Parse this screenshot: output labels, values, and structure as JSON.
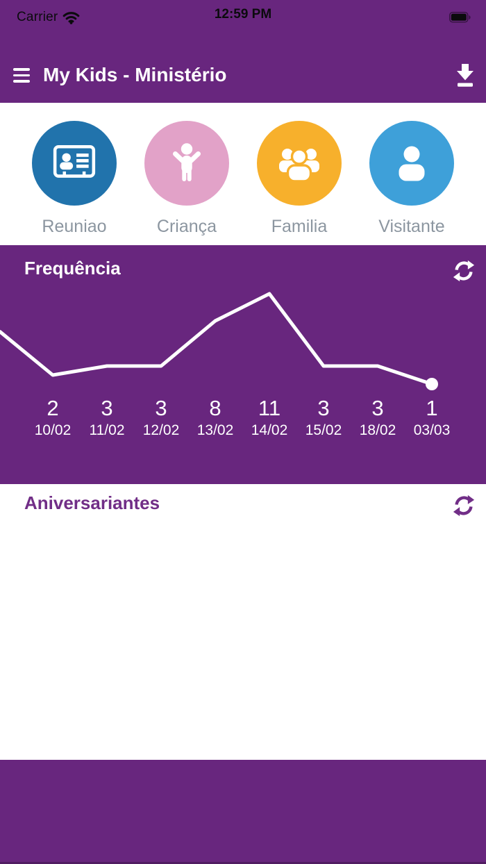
{
  "status_bar": {
    "carrier": "Carrier",
    "time": "12:59 PM",
    "wifi_icon": "wifi-icon",
    "battery_icon": "battery-icon"
  },
  "header": {
    "title": "My Kids - Ministério",
    "menu_icon": "hamburger-menu-icon",
    "download_icon": "download-icon"
  },
  "shortcuts": {
    "items": [
      {
        "label": "Reuniao",
        "icon": "contact-card-icon",
        "color": "#2173AC"
      },
      {
        "label": "Criança",
        "icon": "child-icon",
        "color": "#E2A2C8"
      },
      {
        "label": "Familia",
        "icon": "users-icon",
        "color": "#F7B02C"
      },
      {
        "label": "Visitante",
        "icon": "user-icon",
        "color": "#3EA0D9"
      }
    ]
  },
  "frequency": {
    "title": "Frequência",
    "refresh_icon": "refresh-icon"
  },
  "birthdays": {
    "title": "Aniversariantes",
    "refresh_icon": "refresh-icon"
  },
  "chart_data": {
    "type": "line",
    "title": "Frequência",
    "categories": [
      "10/02",
      "11/02",
      "12/02",
      "13/02",
      "14/02",
      "15/02",
      "18/02",
      "03/03"
    ],
    "values": [
      2,
      3,
      3,
      8,
      11,
      3,
      3,
      1
    ],
    "leading_edge_value": 6.8,
    "ylim": [
      0,
      13
    ],
    "grid": false,
    "legend": false,
    "line_color": "#FFFFFF",
    "marker_on_last_point": true,
    "background": "#68267E"
  },
  "colors": {
    "app_purple": "#68267E",
    "section_title_purple": "#712E87",
    "shortcut_label_gray": "#8C96A0",
    "chart_line": "#FFFFFF",
    "status_text": "#0B0B0D"
  }
}
